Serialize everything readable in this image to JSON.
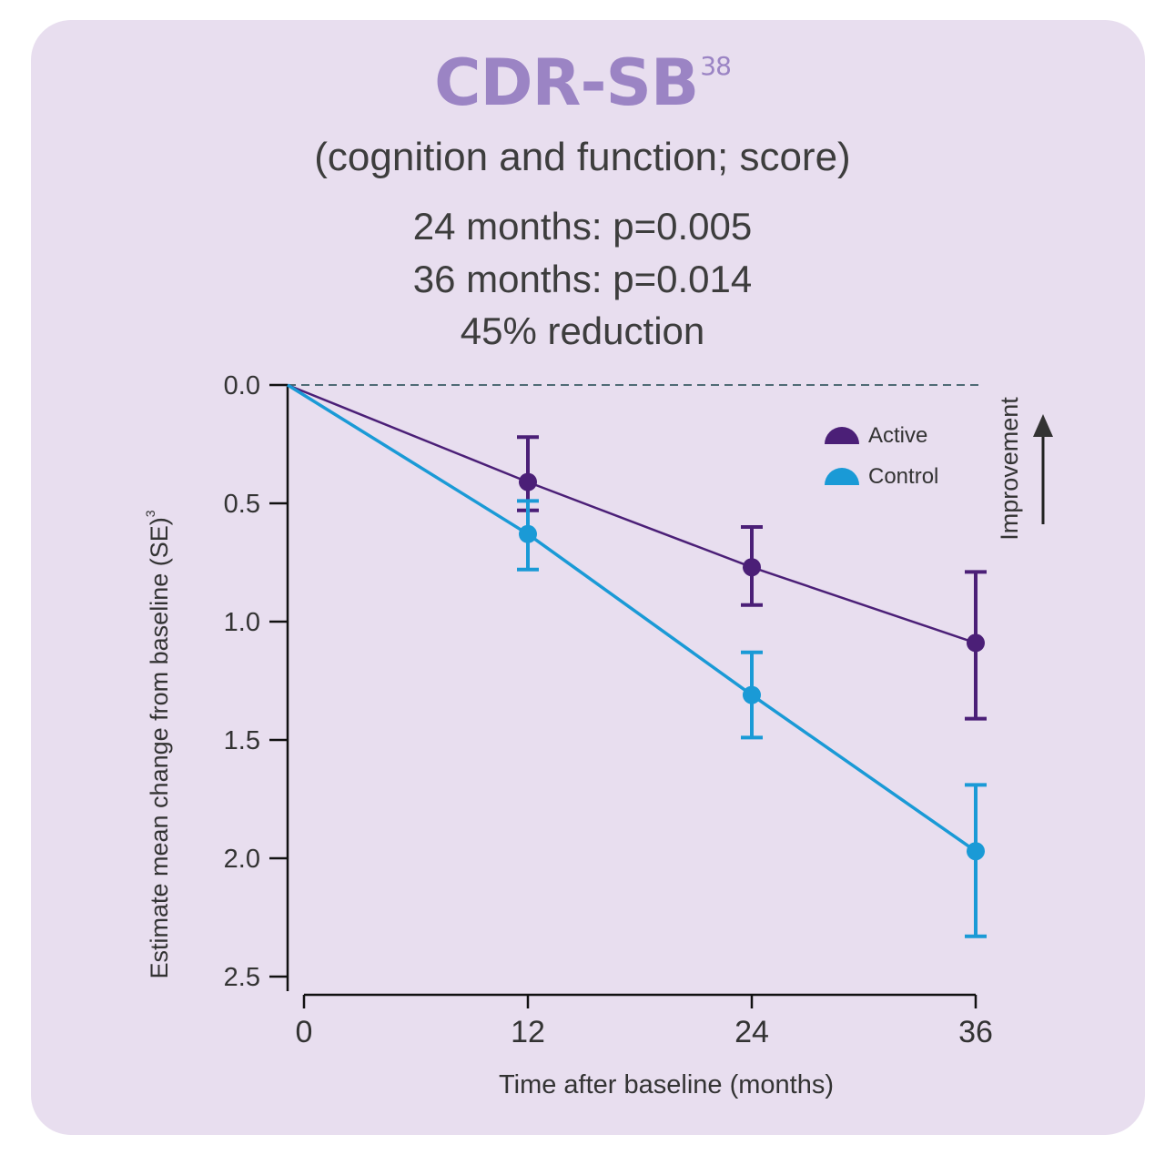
{
  "title": "CDR-SB",
  "title_sup": "38",
  "subtitle": "(cognition and function; score)",
  "stats": [
    "24  months: p=0.005",
    "36 months: p=0.014",
    "45% reduction"
  ],
  "improvement_label": "Improvement",
  "colors": {
    "background": "#e8deef",
    "title": "#9b84c4",
    "active": "#4b1f77",
    "control": "#1a9ad6",
    "baseline": "#4f6b75"
  },
  "chart_data": {
    "type": "line",
    "title": "CDR-SB",
    "xlabel": "Time after baseline (months)",
    "ylabel": "Estimate mean change from baseline  (SE)",
    "ylabel_sup": "3",
    "x": [
      0,
      12,
      24,
      36
    ],
    "x_ticks": [
      "0",
      "12",
      "24",
      "36"
    ],
    "y_ticks": [
      "0.0",
      "0.5",
      "1.0",
      "1.5",
      "2.0",
      "2.5"
    ],
    "ylim": [
      0,
      2.5
    ],
    "y_inverted": true,
    "series": [
      {
        "name": "Active",
        "color": "#4b1f77",
        "values": [
          0,
          0.41,
          0.77,
          1.09
        ],
        "error_low": [
          null,
          0.22,
          0.6,
          0.79
        ],
        "error_high": [
          null,
          0.53,
          0.93,
          1.41
        ]
      },
      {
        "name": "Control",
        "color": "#1a9ad6",
        "values": [
          0,
          0.63,
          1.31,
          1.97
        ],
        "error_low": [
          null,
          0.49,
          1.13,
          1.69
        ],
        "error_high": [
          null,
          0.78,
          1.49,
          2.33
        ]
      }
    ],
    "legend_position": "top-right",
    "grid": false
  }
}
